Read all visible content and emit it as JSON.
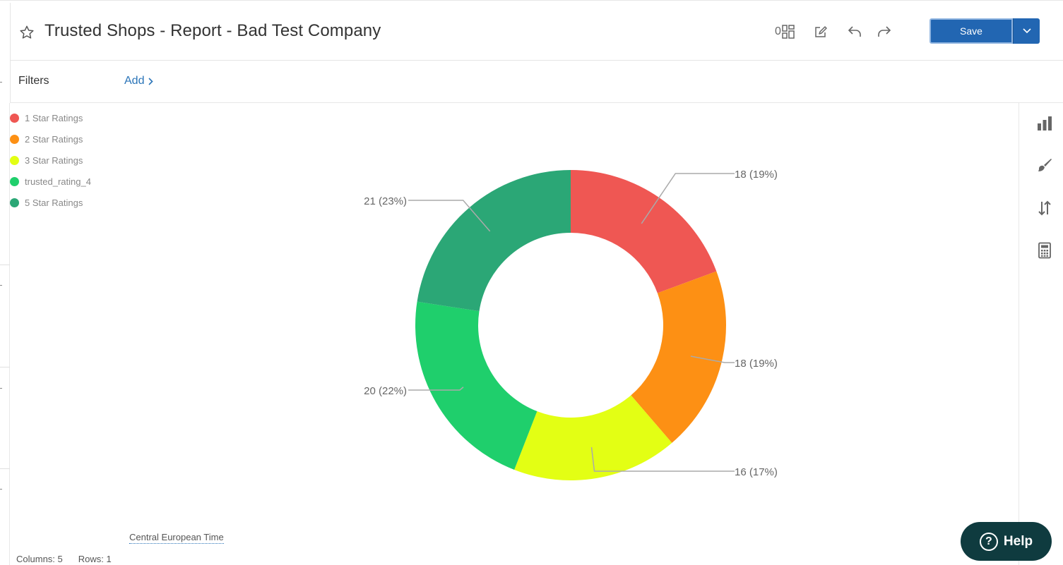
{
  "header": {
    "title": "Trusted Shops - Report - Bad Test Company",
    "widget_count": "0",
    "save_label": "Save"
  },
  "filters": {
    "label": "Filters",
    "add_label": "Add"
  },
  "chart_data": {
    "type": "pie",
    "variant": "donut",
    "categories": [
      "1 Star Ratings",
      "2 Star Ratings",
      "3 Star Ratings",
      "trusted_rating_4",
      "5 Star Ratings"
    ],
    "values": [
      18,
      18,
      16,
      20,
      21
    ],
    "percentages": [
      19,
      19,
      17,
      22,
      23
    ],
    "data_labels": [
      "18 (19%)",
      "18 (19%)",
      "16 (17%)",
      "20 (22%)",
      "21 (23%)"
    ],
    "colors": [
      "#ef5753",
      "#fd9014",
      "#e3ff14",
      "#1fcf6c",
      "#2ba776"
    ],
    "legend_position": "top-left",
    "title": ""
  },
  "footer": {
    "timezone": "Central European Time",
    "columns_text": "Columns: 5",
    "rows_text": "Rows: 1"
  },
  "help": {
    "icon": "?",
    "label": "Help"
  },
  "icons": [
    "star-icon",
    "dashboard-layout-icon",
    "edit-icon",
    "undo-icon",
    "redo-icon",
    "chevron-down-icon",
    "chevron-right-icon",
    "bar-chart-icon",
    "paint-brush-icon",
    "sort-icon",
    "calculator-icon",
    "help-icon"
  ]
}
